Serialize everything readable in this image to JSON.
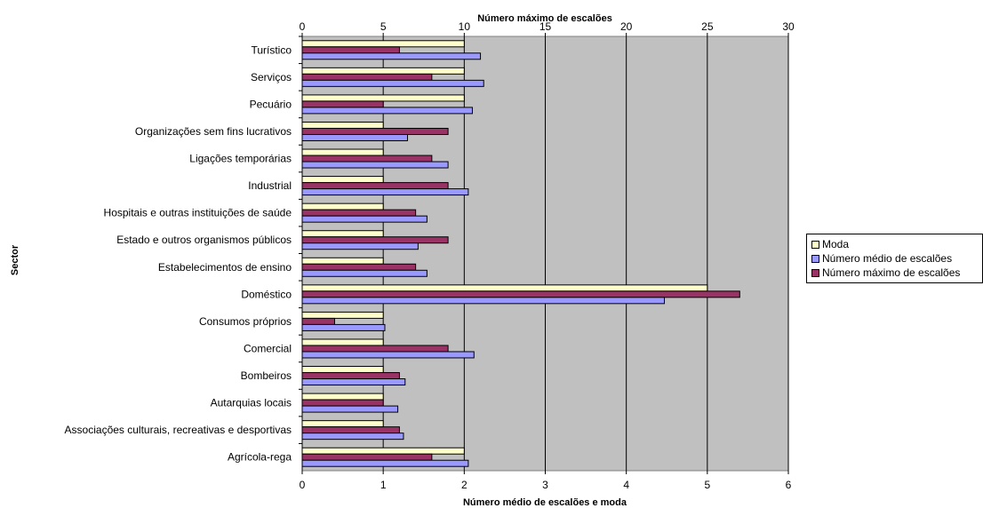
{
  "chart_data": {
    "type": "bar",
    "orientation": "horizontal",
    "title": "",
    "ylabel": "Sector",
    "xlabel_bottom": "Número médio de escalões e moda",
    "xlabel_top": "Número máximo de escalões",
    "xlim_bottom": [
      0,
      6
    ],
    "xlim_top": [
      0,
      30
    ],
    "xticks_bottom": [
      "0",
      "1",
      "2",
      "3",
      "4",
      "5",
      "6"
    ],
    "xticks_top": [
      "0",
      "5",
      "10",
      "15",
      "20",
      "25",
      "30"
    ],
    "grid": "vertical",
    "legend_position": "right",
    "categories": [
      "Turístico",
      "Serviços",
      "Pecuário",
      "Organizações sem fins lucrativos",
      "Ligações temporárias",
      "Industrial",
      "Hospitais e outras instituições de saúde",
      "Estado e outros organismos públicos",
      "Estabelecimentos de ensino",
      "Doméstico",
      "Consumos próprios",
      "Comercial",
      "Bombeiros",
      "Autarquias locais",
      "Associações culturais, recreativas e desportivas",
      "Agrícola-rega"
    ],
    "series": [
      {
        "name": "Moda",
        "axis": "bottom",
        "color": "#ffffcc",
        "values": [
          2,
          2,
          2,
          1,
          1,
          1,
          1,
          1,
          1,
          5,
          1,
          1,
          1,
          1,
          1,
          2
        ]
      },
      {
        "name": "Número médio de escalões",
        "axis": "bottom",
        "color": "#9999ff",
        "values": [
          2.2,
          2.24,
          2.1,
          1.3,
          1.8,
          2.05,
          1.54,
          1.43,
          1.54,
          4.47,
          1.02,
          2.12,
          1.27,
          1.18,
          1.25,
          2.05
        ]
      },
      {
        "name": "Número máximo de escalões",
        "axis": "top",
        "color": "#993366",
        "values": [
          6,
          8,
          5,
          9,
          8,
          9,
          7,
          9,
          7,
          27,
          2,
          9,
          6,
          5,
          6,
          8
        ]
      }
    ]
  },
  "colors": {
    "plot_background": "#c0c0c0",
    "gridline": "#000000"
  }
}
